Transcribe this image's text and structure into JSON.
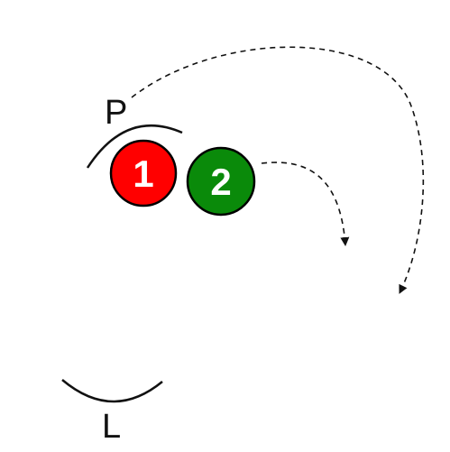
{
  "labels": {
    "top_arc": "P",
    "bottom_arc": "L"
  },
  "circles": [
    {
      "label": "1",
      "color": "#ff0000",
      "stroke": "#000000"
    },
    {
      "label": "2",
      "color": "#0a8a0a",
      "stroke": "#000000"
    }
  ],
  "arrow_style": {
    "color": "#111111",
    "dashed": true
  }
}
